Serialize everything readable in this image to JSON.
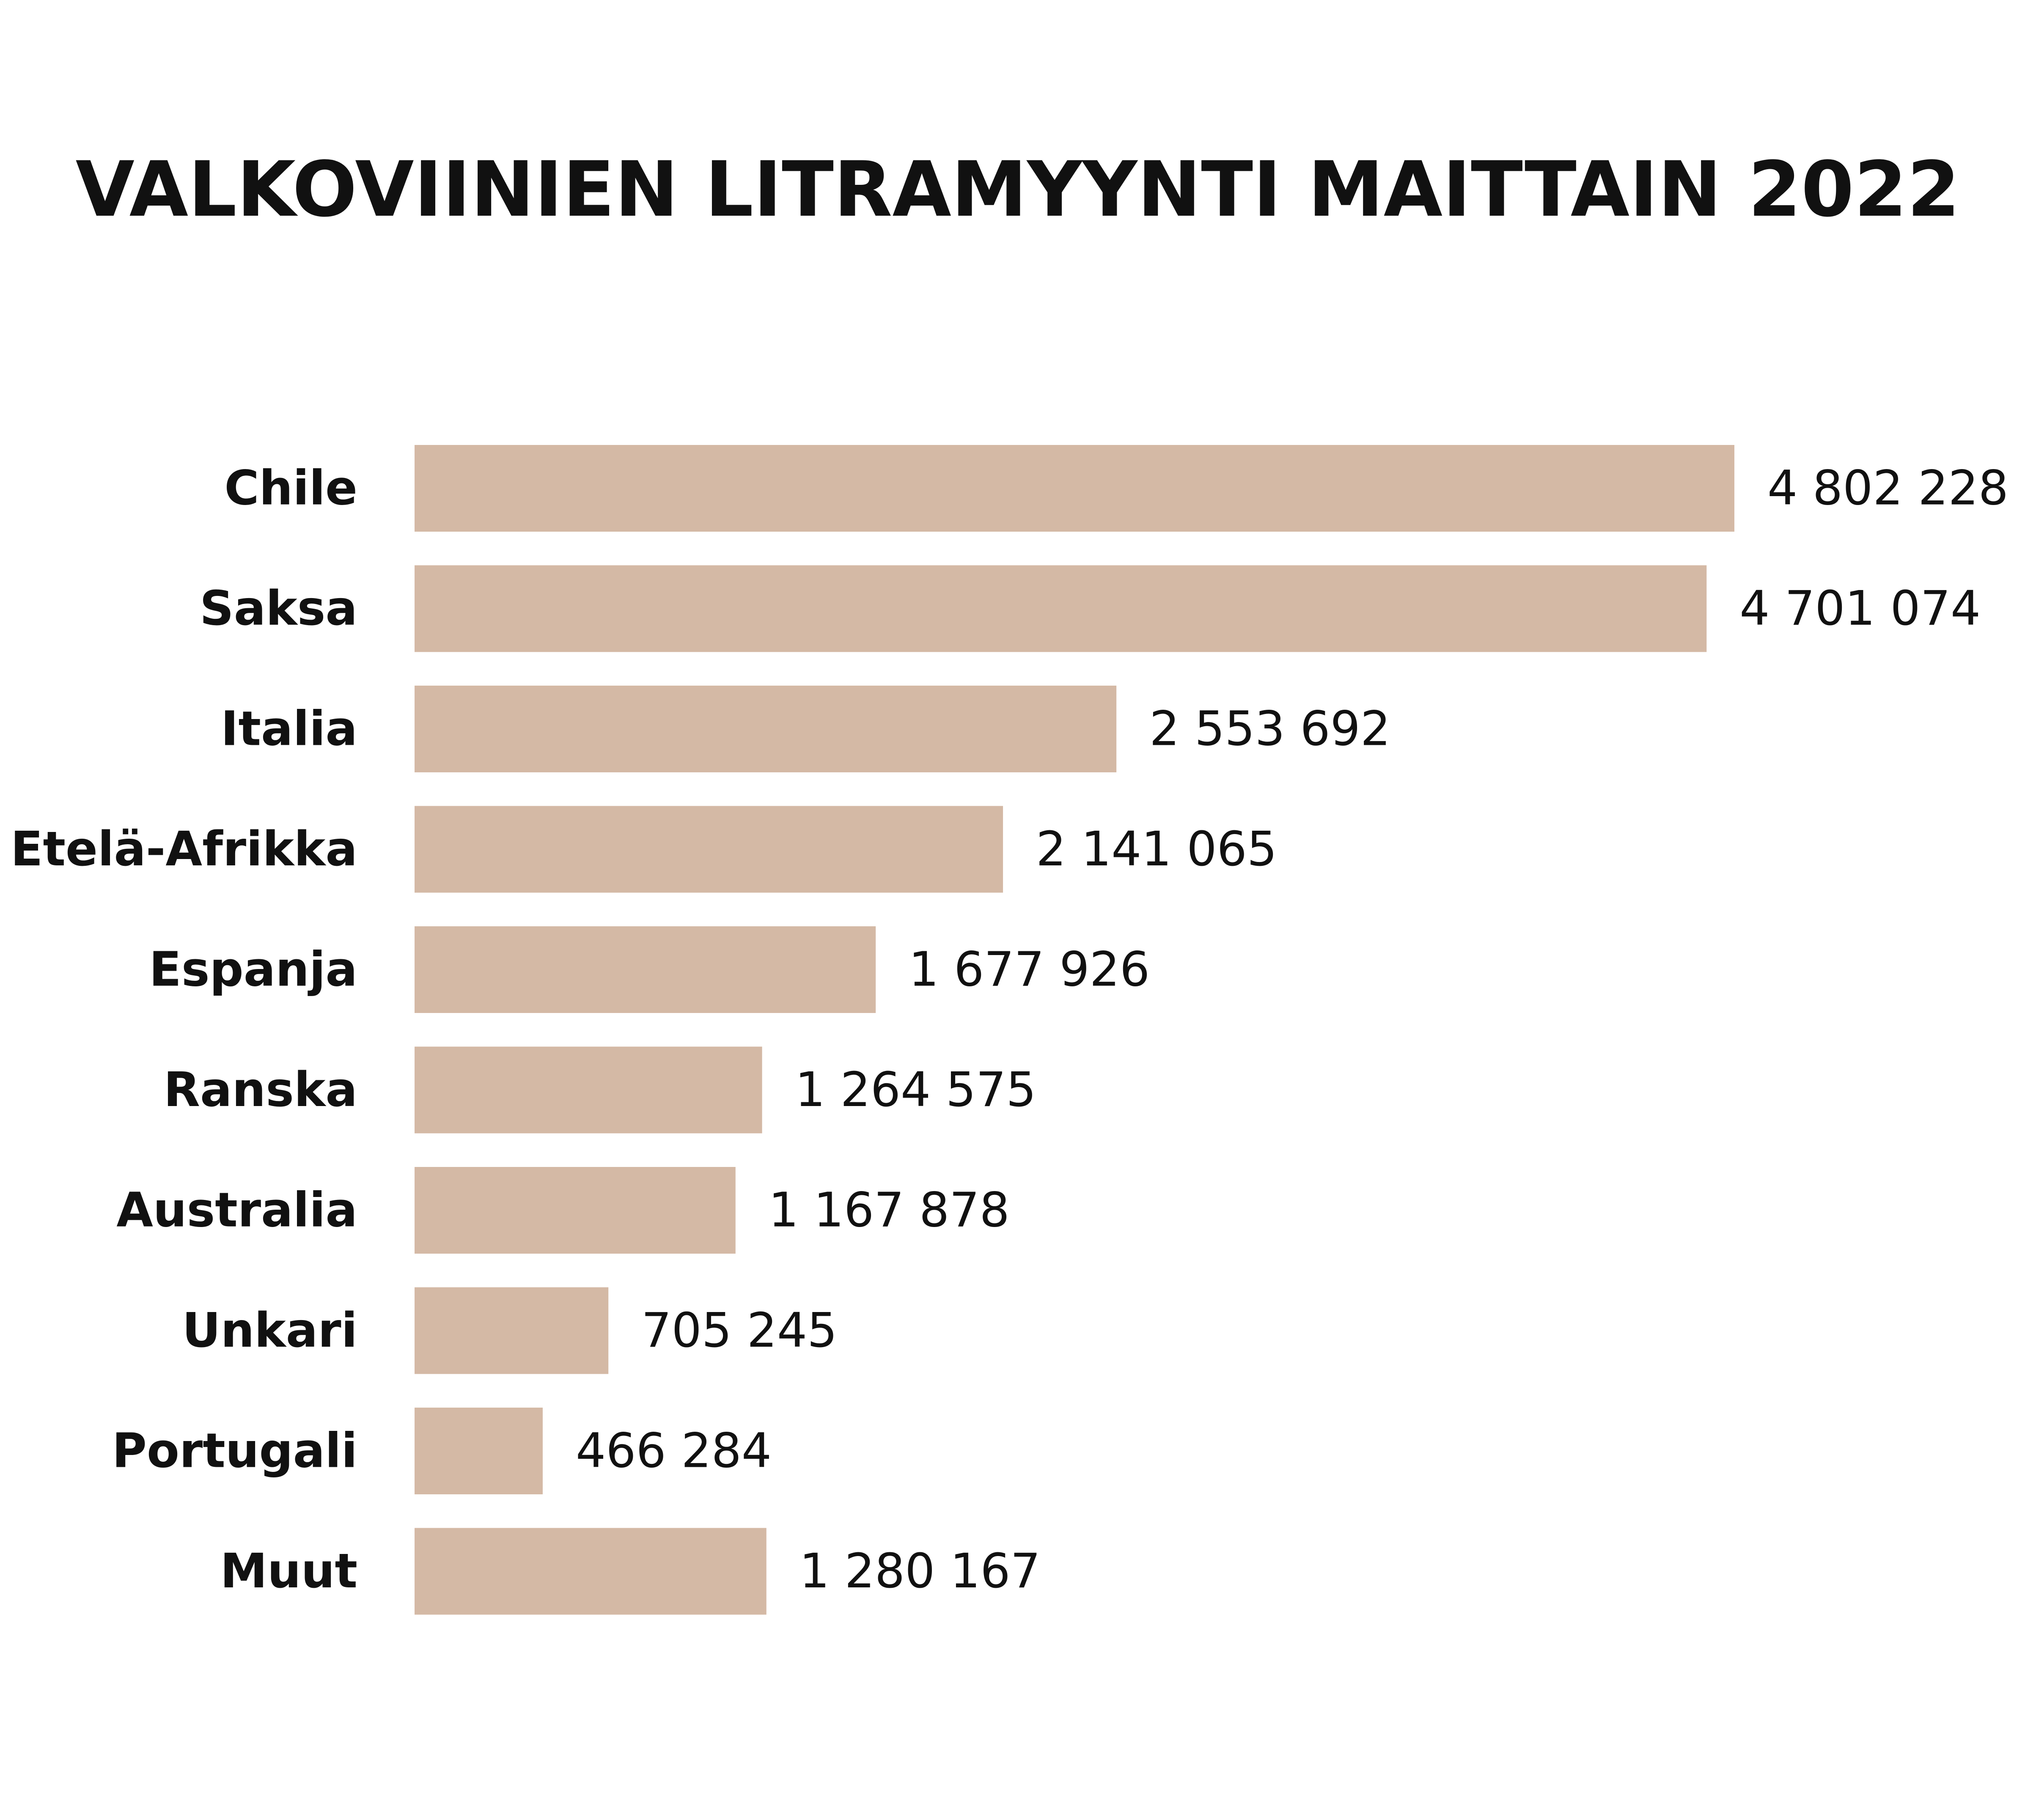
{
  "chart_data": {
    "type": "bar",
    "orientation": "horizontal",
    "title": "VALKOVIINIEN LITRAMYYNTI MAITTAIN 2022",
    "xlabel": "",
    "ylabel": "",
    "grid": false,
    "legend": "none",
    "bar_color": "#d4b9a5",
    "text_color": "#111111",
    "categories": [
      "Chile",
      "Saksa",
      "Italia",
      "Etelä-Afrikka",
      "Espanja",
      "Ranska",
      "Australia",
      "Unkari",
      "Portugali",
      "Muut"
    ],
    "values": [
      4802228,
      4701074,
      2553692,
      2141065,
      1677926,
      1264575,
      1167878,
      705245,
      466284,
      1280167
    ],
    "value_labels": [
      "4 802 228",
      "4 701 074",
      "2 553 692",
      "2 141 065",
      "1 677 926",
      "1 264 575",
      "1 167 878",
      "705 245",
      "466 284",
      "1 280 167"
    ]
  }
}
